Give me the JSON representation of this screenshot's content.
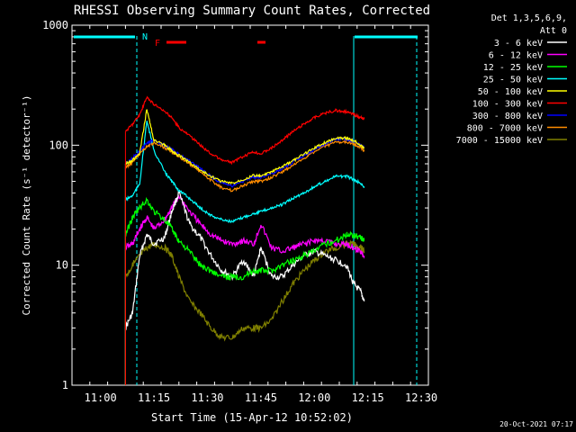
{
  "chart_data": {
    "type": "line",
    "title": "RHESSI Observing Summary Count Rates, Corrected",
    "xlabel": "Start Time (15-Apr-12 10:52:02)",
    "ylabel": "Corrected Count Rate (s⁻¹ detector⁻¹)",
    "y_scale": "log",
    "ylim": [
      1,
      1000
    ],
    "xlim": [
      "10:52",
      "12:32"
    ],
    "x_ticks": [
      "11:00",
      "11:15",
      "11:30",
      "11:45",
      "12:00",
      "12:15",
      "12:30"
    ],
    "y_ticks": [
      "1",
      "10",
      "100",
      "1000"
    ],
    "legend": {
      "placement": "right",
      "header": [
        "Det 1,3,5,6,9,",
        "Att 0"
      ]
    },
    "series": [
      {
        "name": "3 - 6 keV",
        "color": "#ffffff",
        "x": [
          "11:07",
          "11:09",
          "11:11",
          "11:13",
          "11:15",
          "11:18",
          "11:20",
          "11:22",
          "11:25",
          "11:28",
          "11:31",
          "11:34",
          "11:37",
          "11:40",
          "11:43",
          "11:45",
          "11:48",
          "11:51",
          "11:54",
          "11:57",
          "12:00",
          "12:03",
          "12:06",
          "12:09",
          "12:11",
          "12:13",
          "12:14"
        ],
        "values": [
          3,
          4,
          12,
          18,
          15,
          17,
          28,
          40,
          22,
          17,
          12,
          9,
          8,
          11,
          8,
          14,
          8,
          8,
          10,
          12,
          13,
          12,
          11,
          10,
          7,
          6,
          5
        ]
      },
      {
        "name": "6 - 12 keV",
        "color": "#ff00ff",
        "x": [
          "11:07",
          "11:09",
          "11:11",
          "11:13",
          "11:15",
          "11:18",
          "11:20",
          "11:22",
          "11:25",
          "11:28",
          "11:31",
          "11:34",
          "11:37",
          "11:40",
          "11:43",
          "11:45",
          "11:48",
          "11:51",
          "11:54",
          "11:57",
          "12:00",
          "12:03",
          "12:06",
          "12:09",
          "12:11",
          "12:13",
          "12:14"
        ],
        "values": [
          14,
          15,
          20,
          25,
          20,
          24,
          30,
          38,
          28,
          22,
          18,
          16,
          15,
          16,
          15,
          22,
          14,
          13,
          14,
          15,
          16,
          16,
          15,
          15,
          14,
          13,
          12
        ]
      },
      {
        "name": "12 - 25 keV",
        "color": "#00ff00",
        "x": [
          "11:07",
          "11:09",
          "11:11",
          "11:13",
          "11:15",
          "11:18",
          "11:20",
          "11:22",
          "11:25",
          "11:28",
          "11:31",
          "11:34",
          "11:37",
          "11:40",
          "11:43",
          "11:45",
          "11:48",
          "11:51",
          "11:54",
          "11:57",
          "12:00",
          "12:03",
          "12:06",
          "12:09",
          "12:11",
          "12:13",
          "12:14"
        ],
        "values": [
          18,
          25,
          30,
          35,
          28,
          24,
          20,
          16,
          13,
          10,
          9,
          8,
          8,
          8,
          9,
          9,
          9,
          10,
          11,
          12,
          13,
          15,
          16,
          18,
          18,
          17,
          16
        ]
      },
      {
        "name": "25 - 50 keV",
        "color": "#00ffff",
        "x": [
          "11:07",
          "11:09",
          "11:11",
          "11:13",
          "11:15",
          "11:18",
          "11:20",
          "11:22",
          "11:25",
          "11:28",
          "11:31",
          "11:34",
          "11:37",
          "11:40",
          "11:43",
          "11:45",
          "11:48",
          "11:51",
          "11:54",
          "11:57",
          "12:00",
          "12:03",
          "12:06",
          "12:09",
          "12:11",
          "12:13",
          "12:14"
        ],
        "values": [
          35,
          38,
          48,
          160,
          90,
          60,
          50,
          42,
          36,
          30,
          26,
          24,
          23,
          25,
          27,
          28,
          30,
          32,
          36,
          40,
          45,
          50,
          55,
          55,
          52,
          48,
          45
        ]
      },
      {
        "name": "50 - 100 keV",
        "color": "#ffff00",
        "x": [
          "11:07",
          "11:09",
          "11:11",
          "11:13",
          "11:15",
          "11:18",
          "11:20",
          "11:22",
          "11:25",
          "11:28",
          "11:31",
          "11:34",
          "11:37",
          "11:40",
          "11:43",
          "11:45",
          "11:48",
          "11:51",
          "11:54",
          "11:57",
          "12:00",
          "12:03",
          "12:06",
          "12:09",
          "12:11",
          "12:13",
          "12:14"
        ],
        "values": [
          70,
          75,
          85,
          200,
          110,
          100,
          90,
          82,
          72,
          62,
          55,
          50,
          48,
          52,
          56,
          55,
          60,
          66,
          74,
          84,
          95,
          105,
          115,
          115,
          110,
          100,
          95
        ]
      },
      {
        "name": "100 - 300 keV",
        "color": "#ff0000",
        "x": [
          "11:07",
          "11:09",
          "11:11",
          "11:13",
          "11:15",
          "11:18",
          "11:20",
          "11:22",
          "11:25",
          "11:28",
          "11:31",
          "11:34",
          "11:37",
          "11:40",
          "11:43",
          "11:45",
          "11:48",
          "11:51",
          "11:54",
          "11:57",
          "12:00",
          "12:03",
          "12:06",
          "12:09",
          "12:11",
          "12:13",
          "12:14"
        ],
        "values": [
          130,
          150,
          180,
          250,
          220,
          190,
          170,
          140,
          120,
          100,
          85,
          75,
          72,
          80,
          88,
          85,
          95,
          110,
          130,
          150,
          170,
          185,
          195,
          190,
          180,
          170,
          165
        ]
      },
      {
        "name": "300 - 800 keV",
        "color": "#0000ff",
        "x": [
          "11:07",
          "11:09",
          "11:11",
          "11:13",
          "11:15",
          "11:18",
          "11:20",
          "11:22",
          "11:25",
          "11:28",
          "11:31",
          "11:34",
          "11:37",
          "11:40",
          "11:43",
          "11:45",
          "11:48",
          "11:51",
          "11:54",
          "11:57",
          "12:00",
          "12:03",
          "12:06",
          "12:09",
          "12:11",
          "12:13",
          "12:14"
        ],
        "values": [
          70,
          78,
          90,
          105,
          110,
          100,
          92,
          84,
          74,
          64,
          55,
          48,
          46,
          50,
          54,
          54,
          58,
          64,
          72,
          82,
          92,
          102,
          112,
          112,
          108,
          100,
          96
        ]
      },
      {
        "name": "800 - 7000 keV",
        "color": "#ff8c00",
        "x": [
          "11:07",
          "11:09",
          "11:11",
          "11:13",
          "11:15",
          "11:18",
          "11:20",
          "11:22",
          "11:25",
          "11:28",
          "11:31",
          "11:34",
          "11:37",
          "11:40",
          "11:43",
          "11:45",
          "11:48",
          "11:51",
          "11:54",
          "11:57",
          "12:00",
          "12:03",
          "12:06",
          "12:09",
          "12:11",
          "12:13",
          "12:14"
        ],
        "values": [
          65,
          72,
          84,
          98,
          104,
          95,
          88,
          80,
          70,
          60,
          51,
          44,
          42,
          46,
          50,
          50,
          54,
          60,
          68,
          78,
          88,
          98,
          106,
          106,
          102,
          95,
          90
        ]
      },
      {
        "name": "7000 - 15000 keV",
        "color": "#808000",
        "x": [
          "11:07",
          "11:09",
          "11:11",
          "11:13",
          "11:15",
          "11:18",
          "11:20",
          "11:22",
          "11:25",
          "11:28",
          "11:31",
          "11:34",
          "11:37",
          "11:40",
          "11:43",
          "11:45",
          "11:48",
          "11:51",
          "11:54",
          "11:57",
          "12:00",
          "12:03",
          "12:06",
          "12:09",
          "12:11",
          "12:13",
          "12:14"
        ],
        "values": [
          8,
          10,
          12,
          14,
          15,
          14,
          12,
          8,
          5,
          4,
          3,
          2.5,
          2.5,
          3,
          3,
          3,
          3.5,
          5,
          7,
          9,
          11,
          13,
          14,
          15,
          15,
          14,
          13
        ]
      }
    ],
    "annotations": [
      {
        "text": "N",
        "color": "#00ffff"
      },
      {
        "text": "F",
        "color": "#ff0000"
      }
    ],
    "timestamp": "20-Oct-2021 07:17"
  }
}
